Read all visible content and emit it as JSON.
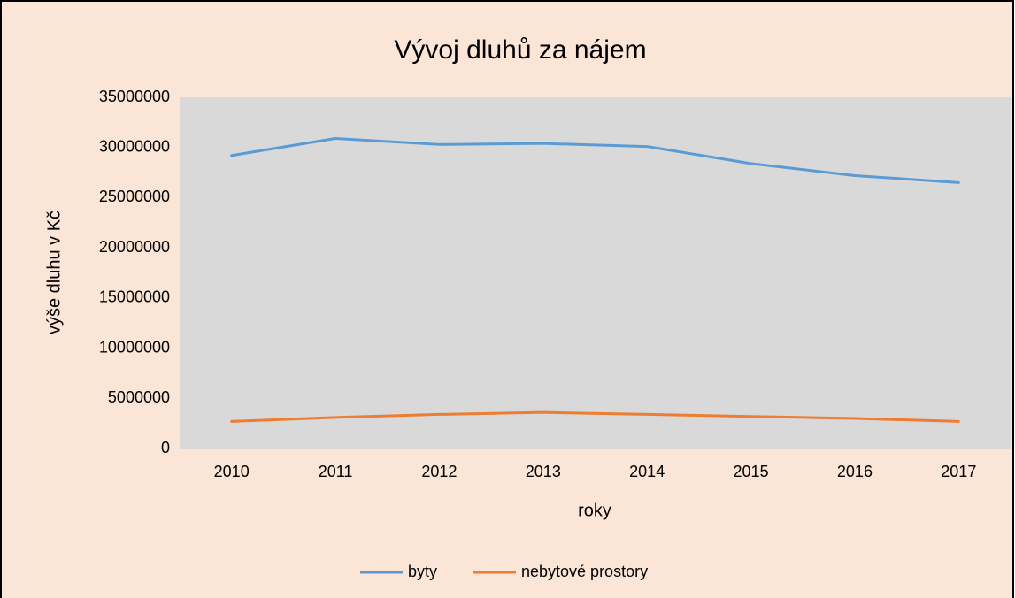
{
  "chart_data": {
    "type": "line",
    "title": "Vývoj dluhů za nájem",
    "x_label": "roky",
    "y_label": "výše dluhu v Kč",
    "categories": [
      "2010",
      "2011",
      "2012",
      "2013",
      "2014",
      "2015",
      "2016",
      "2017"
    ],
    "series": [
      {
        "name": "byty",
        "color": "#5b9bd5",
        "values": [
          29200000,
          30900000,
          30300000,
          30400000,
          30100000,
          28400000,
          27200000,
          26500000
        ]
      },
      {
        "name": "nebytové prostory",
        "color": "#ed7d31",
        "values": [
          2700000,
          3100000,
          3400000,
          3600000,
          3400000,
          3200000,
          3000000,
          2700000
        ]
      }
    ],
    "ylim": [
      0,
      35000000
    ],
    "yticks": [
      0,
      5000000,
      10000000,
      15000000,
      20000000,
      25000000,
      30000000,
      35000000
    ],
    "grid": false,
    "legend": "bottom"
  }
}
